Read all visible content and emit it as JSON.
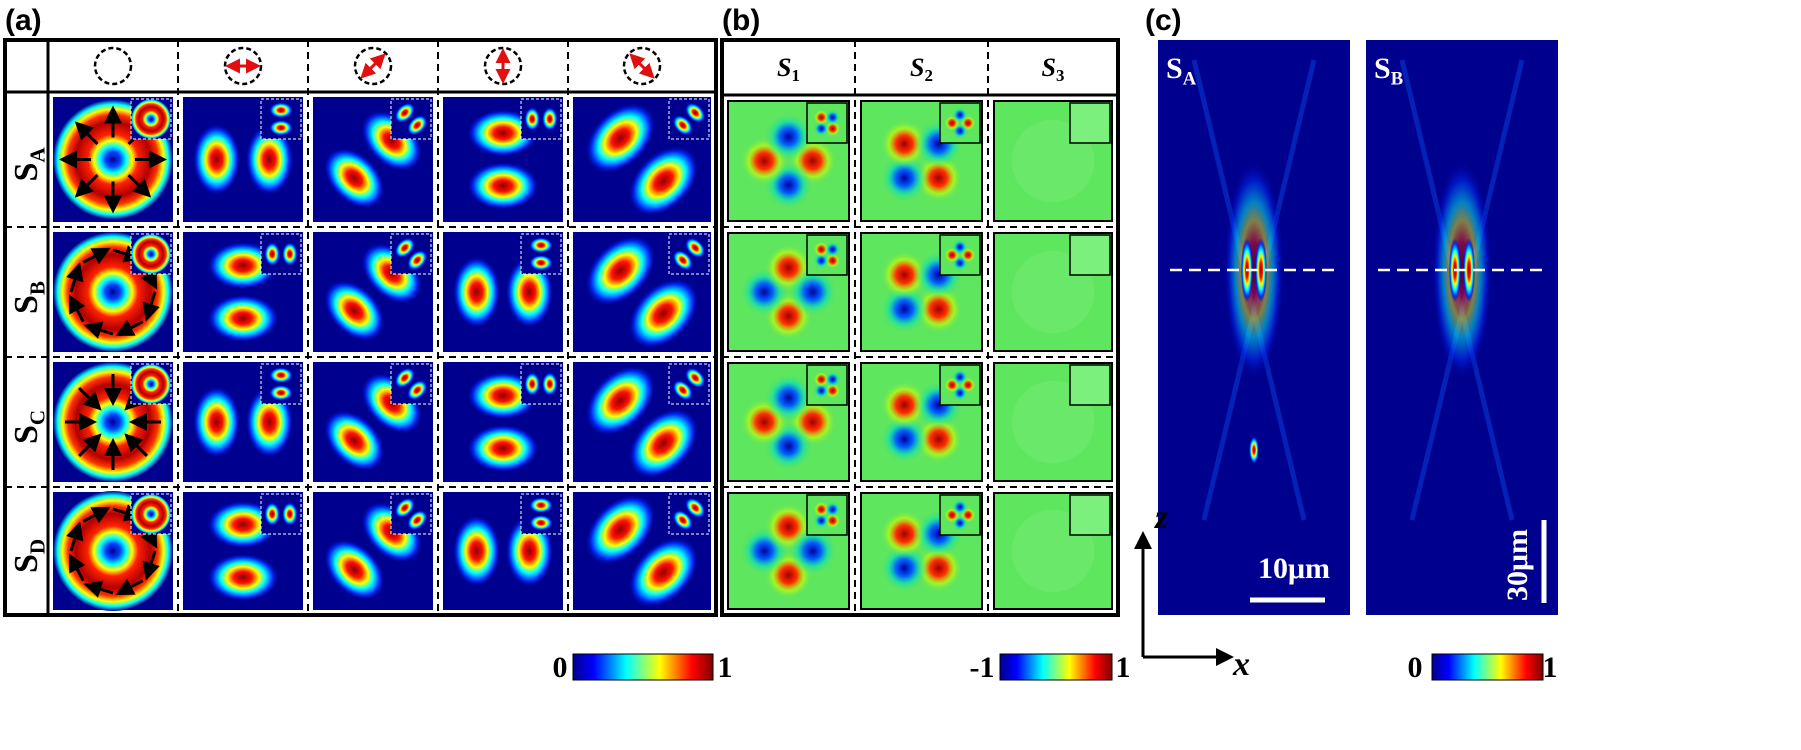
{
  "panel_a": {
    "label": "(a)",
    "rows": [
      {
        "main": "S",
        "sub": "A"
      },
      {
        "main": "S",
        "sub": "B"
      },
      {
        "main": "S",
        "sub": "C"
      },
      {
        "main": "S",
        "sub": "D"
      }
    ],
    "colorbar": {
      "min": "0",
      "max": "1"
    }
  },
  "panel_b": {
    "label": "(b)",
    "columns": [
      {
        "main": "S",
        "sub": "1"
      },
      {
        "main": "S",
        "sub": "2"
      },
      {
        "main": "S",
        "sub": "3"
      }
    ],
    "colorbar": {
      "min": "-1",
      "max": "1"
    }
  },
  "panel_c": {
    "label": "(c)",
    "images": [
      {
        "main": "S",
        "sub": "A"
      },
      {
        "main": "S",
        "sub": "B"
      }
    ],
    "axes": {
      "z": "z",
      "x": "x"
    },
    "scalebars": [
      "10μm",
      "30μm"
    ],
    "colorbar": {
      "min": "0",
      "max": "1"
    }
  }
}
